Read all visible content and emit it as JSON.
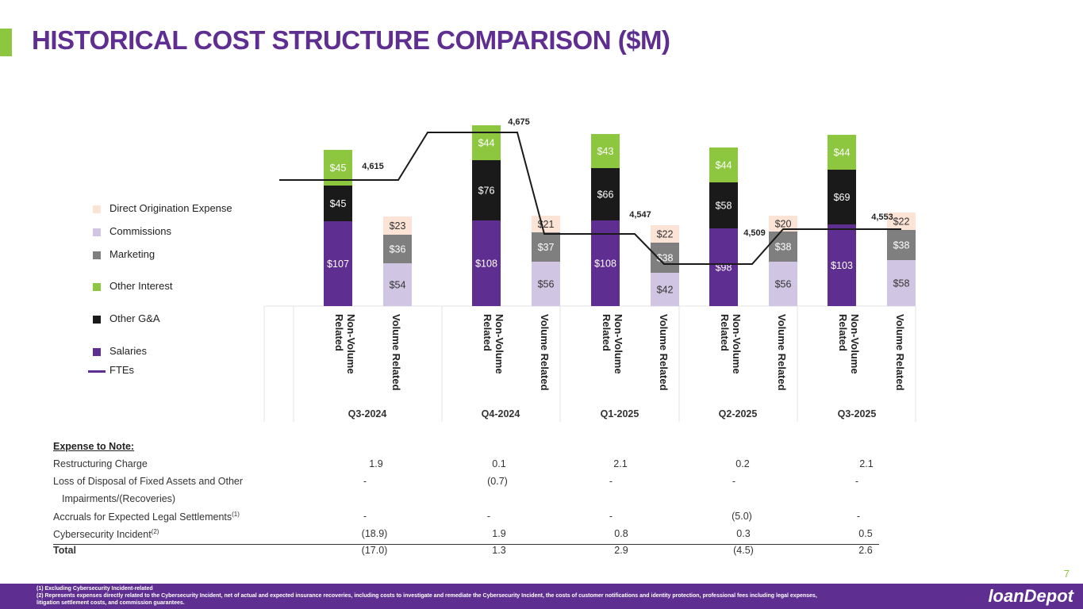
{
  "page": {
    "title": "HISTORICAL COST STRUCTURE COMPARISON ($M)",
    "page_number": "7"
  },
  "legend": {
    "items": [
      {
        "label": "Direct Origination Expense",
        "color": "#FBE3D6"
      },
      {
        "label": "Commissions",
        "color": "#D0C6E3"
      },
      {
        "label": "Marketing",
        "color": "#7F7F7F"
      },
      {
        "label": "Other Interest",
        "color": "#8DC63F"
      },
      {
        "label": "Other G&A",
        "color": "#1A1A1A"
      },
      {
        "label": "Salaries",
        "color": "#5E2E91"
      }
    ],
    "fte_label": "FTEs"
  },
  "chart_data": {
    "type": "bar",
    "stacked": true,
    "quarters": [
      "Q3-2024",
      "Q4-2024",
      "Q1-2025",
      "Q2-2025",
      "Q3-2025"
    ],
    "groups": [
      "Non-Volume Related",
      "Volume Related"
    ],
    "categories": [
      "Non-Volume Related Q3-2024",
      "Volume Related Q3-2024",
      "Non-Volume Related Q4-2024",
      "Volume Related Q4-2024",
      "Non-Volume Related Q1-2025",
      "Volume Related Q1-2025",
      "Non-Volume Related Q2-2025",
      "Volume Related Q2-2025",
      "Non-Volume Related Q3-2025",
      "Volume Related Q3-2025"
    ],
    "series": [
      {
        "name": "Salaries",
        "color": "#5E2E91",
        "values": [
          107,
          null,
          108,
          null,
          108,
          null,
          98,
          null,
          103,
          null
        ]
      },
      {
        "name": "Other G&A",
        "color": "#1A1A1A",
        "values": [
          45,
          null,
          76,
          null,
          66,
          null,
          58,
          null,
          69,
          null
        ]
      },
      {
        "name": "Other Interest",
        "color": "#8DC63F",
        "values": [
          45,
          null,
          44,
          null,
          43,
          null,
          44,
          null,
          44,
          null
        ]
      },
      {
        "name": "Commissions",
        "color": "#D0C6E3",
        "values": [
          null,
          54,
          null,
          56,
          null,
          42,
          null,
          56,
          null,
          58
        ]
      },
      {
        "name": "Marketing",
        "color": "#7F7F7F",
        "values": [
          null,
          36,
          null,
          37,
          null,
          38,
          null,
          38,
          null,
          38
        ]
      },
      {
        "name": "Direct Origination Expense",
        "color": "#FBE3D6",
        "values": [
          null,
          23,
          null,
          21,
          null,
          22,
          null,
          20,
          null,
          22
        ]
      }
    ],
    "ftes": {
      "name": "FTEs",
      "color": "#1A1A1A",
      "values": [
        4615,
        4675,
        4547,
        4509,
        4553
      ],
      "labels": [
        "4,615",
        "4,675",
        "4,547",
        "4,509",
        "4,553"
      ]
    },
    "ylim": [
      0,
      220
    ],
    "fte_ylim": [
      4380,
      4720
    ],
    "title": "",
    "xlabel": "",
    "ylabel": ""
  },
  "notes": {
    "heading": "Expense to Note:",
    "rows": [
      {
        "label": "Restructuring Charge",
        "values": [
          "1.9",
          "0.1",
          "2.1",
          "0.2",
          "2.1"
        ]
      },
      {
        "label": "Loss of Disposal of Fixed Assets and  Other",
        "label2": "Impairments/(Recoveries)",
        "values": [
          "-",
          "(0.7)",
          "-",
          "-",
          "-"
        ]
      },
      {
        "label": "Accruals for Expected Legal Settlements",
        "sup": "(1)",
        "values": [
          "-",
          "-",
          "-",
          "(5.0)",
          "-"
        ]
      },
      {
        "label": "Cybersecurity Incident",
        "sup": "(2)",
        "values": [
          "(18.9)",
          "1.9",
          "0.8",
          "0.3",
          "0.5"
        ]
      }
    ],
    "total": {
      "label": "Total",
      "values": [
        "(17.0)",
        "1.3",
        "2.9",
        "(4.5)",
        "2.6"
      ]
    }
  },
  "footnotes": {
    "fn1": "(1)    Excluding Cybersecurity Incident-related",
    "fn2": "(2)   Represents expenses directly related to the Cybersecurity Incident, net of actual and expected insurance recoveries, including costs to investigate and remediate the Cybersecurity Incident, the costs of customer notifications and identity protection, professional fees including legal expenses,",
    "fn3": "litigation settlement costs, and commission guarantees."
  },
  "logo": {
    "text": "loanDepot"
  }
}
